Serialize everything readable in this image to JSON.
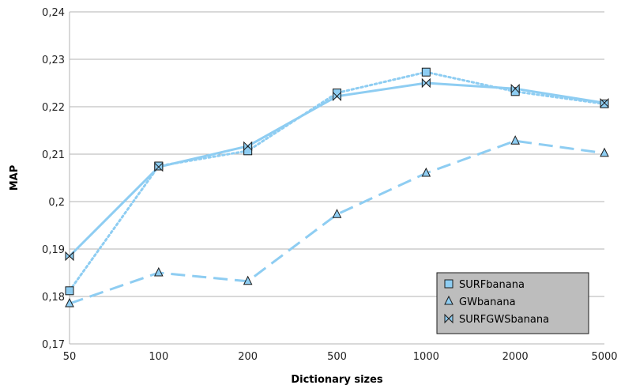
{
  "chart_data": {
    "type": "line",
    "title": "",
    "xlabel": "Dictionary sizes",
    "ylabel": "MAP",
    "categories": [
      "50",
      "100",
      "200",
      "500",
      "1000",
      "2000",
      "5000"
    ],
    "ylim": [
      0.17,
      0.24
    ],
    "yticks": [
      0.17,
      0.18,
      0.19,
      0.2,
      0.21,
      0.22,
      0.23,
      0.24
    ],
    "ytick_labels": [
      "0,17",
      "0,18",
      "0,19",
      "0,2",
      "0,21",
      "0,22",
      "0,23",
      "0,24"
    ],
    "grid": "horizontal",
    "legend_position": "bottom-right",
    "series": [
      {
        "name": "SURFbanana",
        "marker": "square",
        "dash": "dotted",
        "color": "#8ecdf2",
        "values": [
          0.1812,
          0.2075,
          0.2107,
          0.2229,
          0.2273,
          0.2232,
          0.2206
        ]
      },
      {
        "name": "GWbanana",
        "marker": "triangle",
        "dash": "dashed",
        "color": "#8ecdf2",
        "values": [
          0.1785,
          0.185,
          0.1832,
          0.1973,
          0.206,
          0.2128,
          0.2102
        ]
      },
      {
        "name": "SURFGWSbanana",
        "marker": "bowtie",
        "dash": "solid",
        "color": "#8ecdf2",
        "values": [
          0.1885,
          0.2073,
          0.2117,
          0.2222,
          0.225,
          0.2238,
          0.2208
        ]
      }
    ]
  }
}
